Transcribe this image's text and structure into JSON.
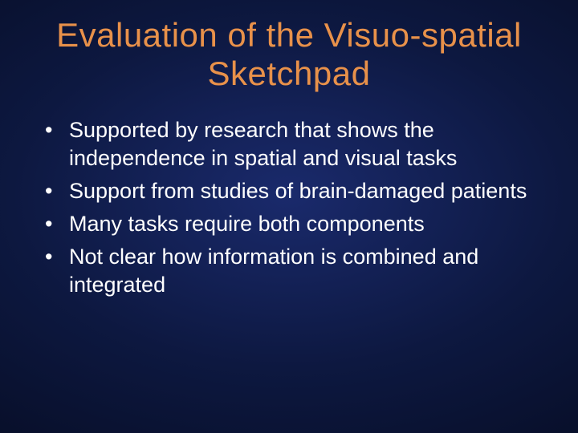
{
  "slide": {
    "title": "Evaluation of the Visuo-spatial Sketchpad",
    "title_color": "#e8914a",
    "title_fontsize": 42,
    "body_color": "#ffffff",
    "body_fontsize": 27,
    "background_gradient": {
      "inner": "#1a2a6c",
      "mid": "#0d1840",
      "outer": "#030614"
    },
    "bullets": [
      "Supported by research that shows the independence in spatial and visual tasks",
      "Support from studies of brain-damaged patients",
      "Many tasks require both components",
      "Not clear how information is combined and integrated"
    ]
  }
}
